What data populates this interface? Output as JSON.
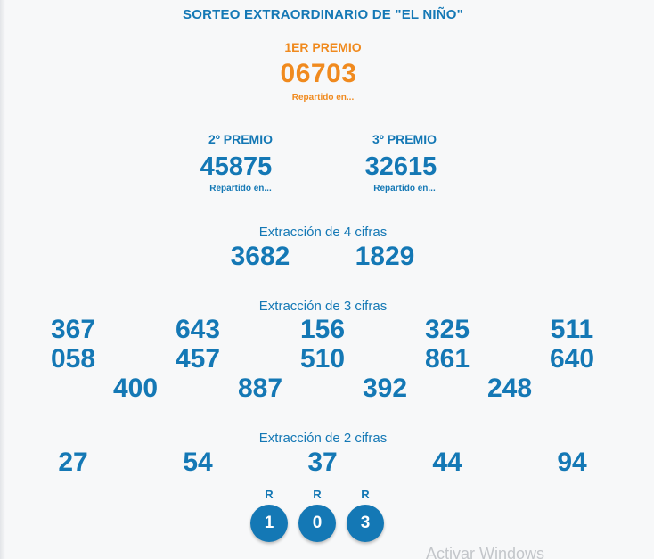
{
  "title": "SORTEO EXTRAORDINARIO DE \"EL NIÑO\"",
  "first_prize": {
    "label": "1ER PREMIO",
    "number": "06703",
    "distribution": "Repartido en..."
  },
  "second_prize": {
    "label": "2º PREMIO",
    "number": "45875",
    "distribution": "Repartido en..."
  },
  "third_prize": {
    "label": "3º PREMIO",
    "number": "32615",
    "distribution": "Repartido en..."
  },
  "four_digit": {
    "label": "Extracción de 4 cifras",
    "numbers": [
      "3682",
      "1829"
    ]
  },
  "three_digit": {
    "label": "Extracción de 3 cifras",
    "numbers": [
      "367",
      "643",
      "156",
      "325",
      "511",
      "058",
      "457",
      "510",
      "861",
      "640",
      "400",
      "887",
      "392",
      "248"
    ]
  },
  "two_digit": {
    "label": "Extracción de 2 cifras",
    "numbers": [
      "27",
      "54",
      "37",
      "44",
      "94"
    ]
  },
  "reintegros": [
    {
      "label": "R",
      "value": "1"
    },
    {
      "label": "R",
      "value": "0"
    },
    {
      "label": "R",
      "value": "3"
    }
  ],
  "watermark": "Activar Windows",
  "colors": {
    "primary_blue": "#1478b5",
    "first_prize_orange": "#f08a1e",
    "background": "#f7f8f9"
  }
}
